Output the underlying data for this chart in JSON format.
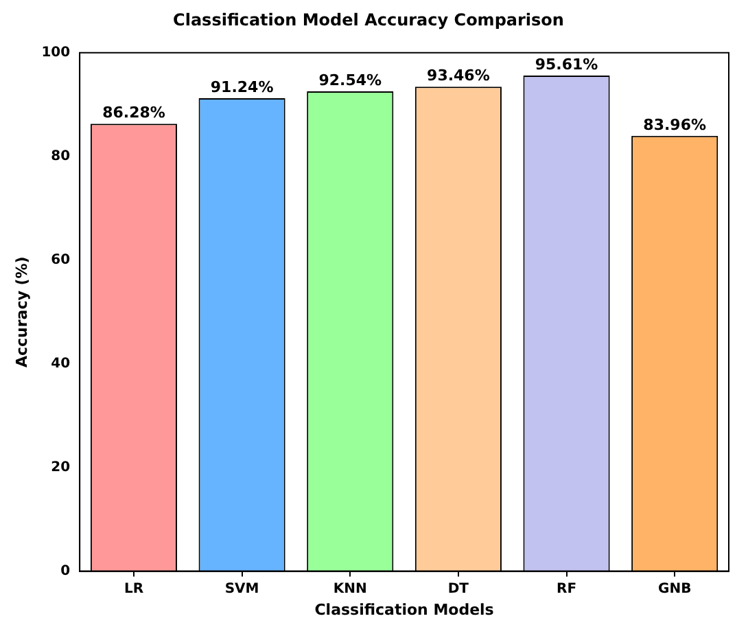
{
  "chart_data": {
    "type": "bar",
    "title": "Classification Model Accuracy Comparison",
    "xlabel": "Classification Models",
    "ylabel": "Accuracy (%)",
    "categories": [
      "LR",
      "SVM",
      "KNN",
      "DT",
      "RF",
      "GNB"
    ],
    "values": [
      86.28,
      91.24,
      92.54,
      93.46,
      95.61,
      83.96
    ],
    "colors": [
      "#ff9999",
      "#66b3ff",
      "#99ff99",
      "#ffcc99",
      "#c2c2f0",
      "#ffb366"
    ],
    "value_labels": [
      "86.28%",
      "91.24%",
      "92.54%",
      "93.46%",
      "95.61%",
      "83.96%"
    ],
    "ylim": [
      0,
      100
    ],
    "yticks": [
      0,
      20,
      40,
      60,
      80,
      100
    ],
    "grid": false,
    "legend": false
  }
}
